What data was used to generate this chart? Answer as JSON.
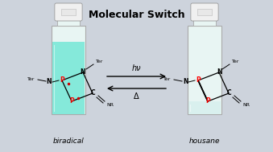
{
  "title": "Molecular Switch",
  "title_fontsize": 9,
  "title_fontweight": "bold",
  "background_color": "#cdd3dc",
  "label_left": "biradical",
  "label_right": "housane",
  "arrow_top": "hν",
  "arrow_bottom": "Δ",
  "vial_left_liquid_color": "#7ae8d8",
  "vial_right_liquid_color": "#d8f0ee",
  "vial_glass_color": "#e8f5f3",
  "vial_edge_color": "#aaaaaa",
  "vial_cap_color": "#f0f0f0"
}
